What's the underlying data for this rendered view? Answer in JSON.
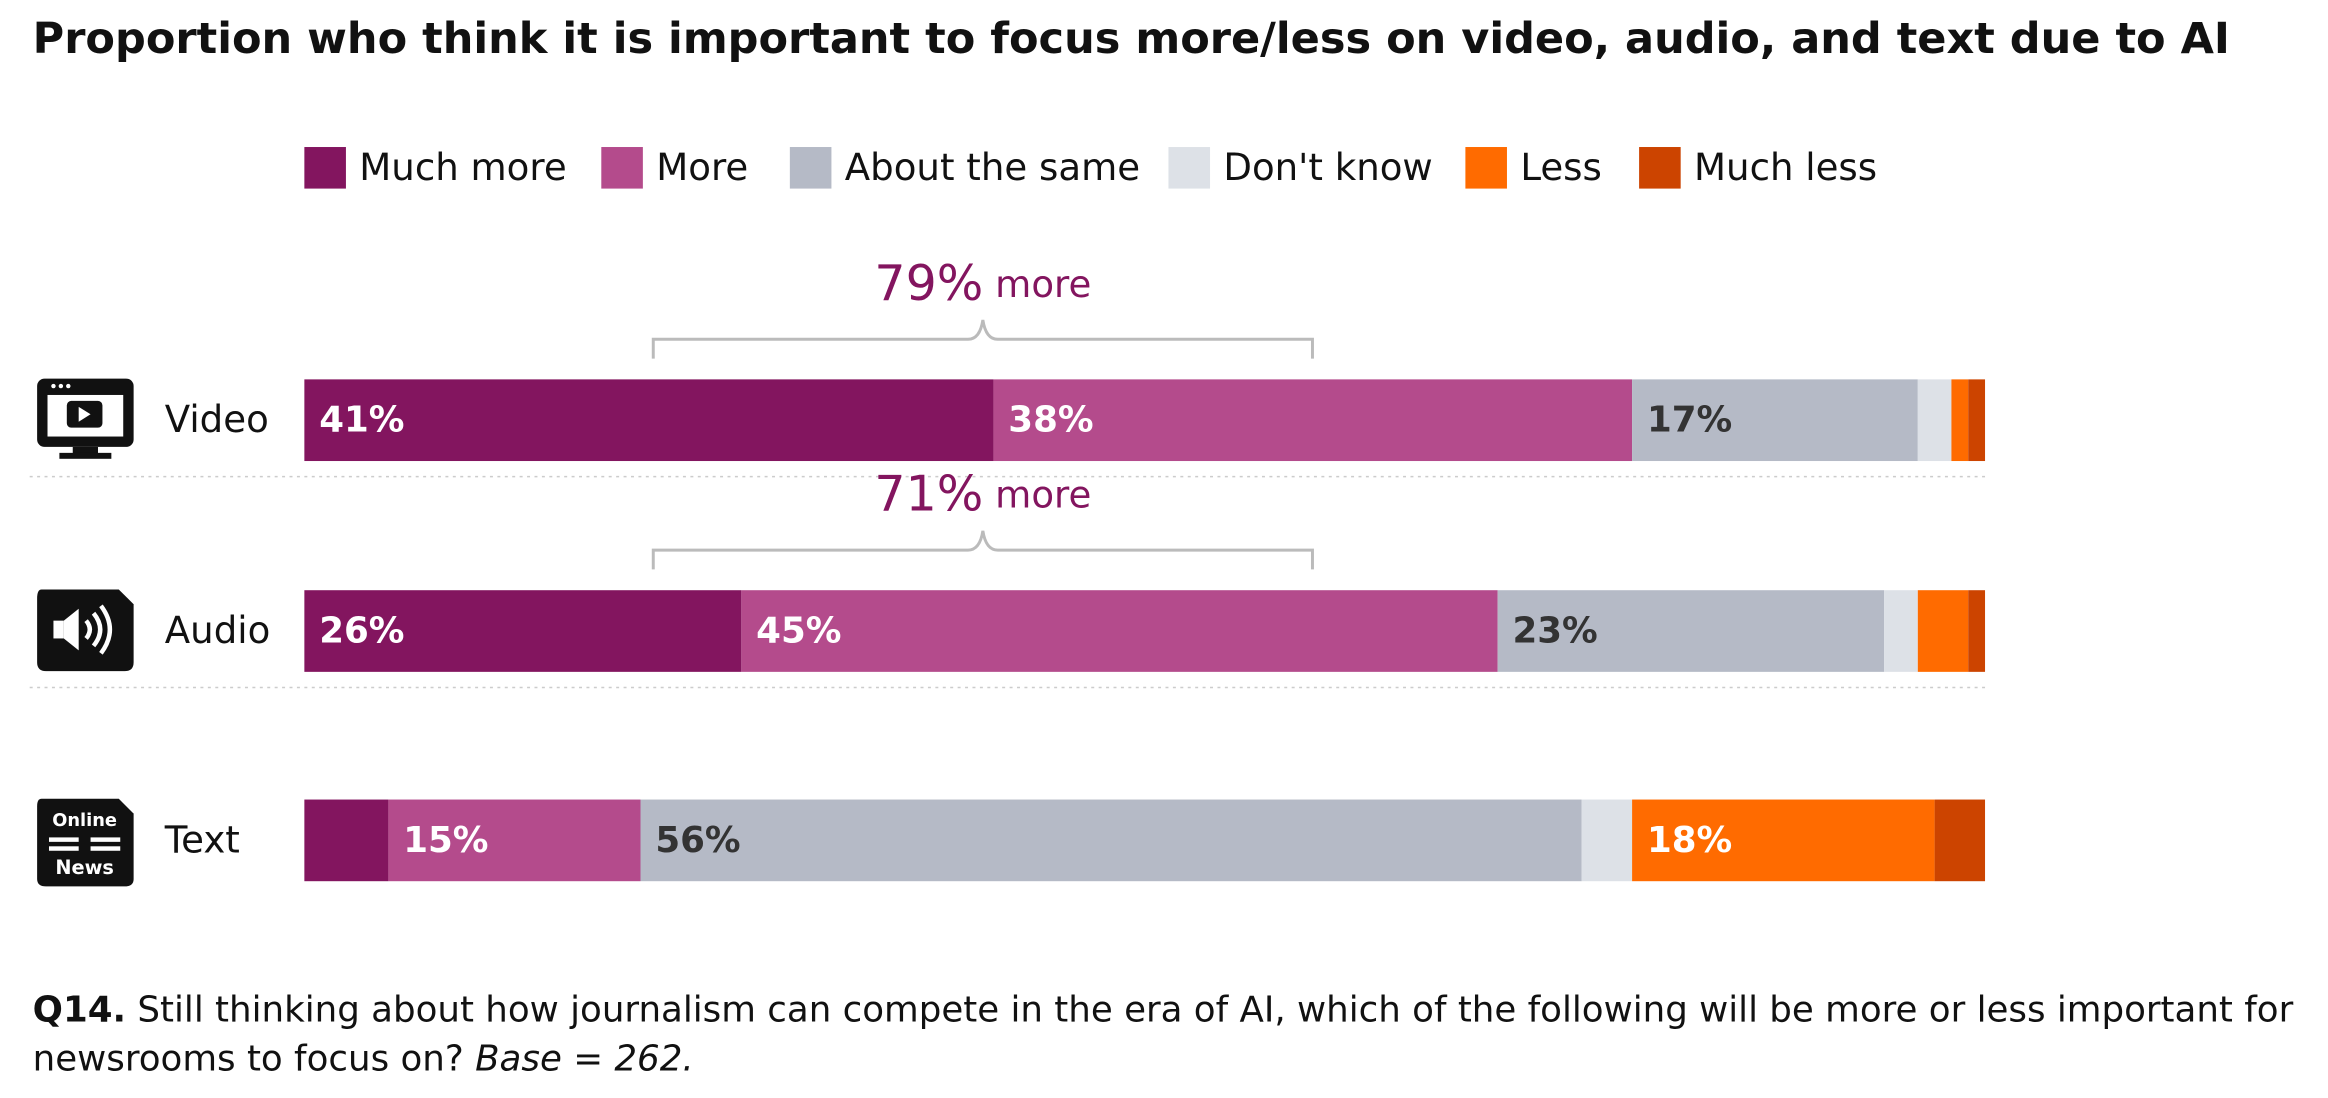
{
  "chart_data": {
    "type": "stacked-bar-horizontal",
    "title": "Proportion who think it is important to focus more/less on video, audio, and text due to AI",
    "categories": [
      "Video",
      "Audio",
      "Text"
    ],
    "xlim": [
      0,
      100
    ],
    "legend": "top",
    "series": [
      {
        "name": "Much more",
        "color": "#83155f",
        "values": [
          41,
          26,
          5
        ],
        "value_labels": [
          "41%",
          "26%",
          null
        ]
      },
      {
        "name": "More",
        "color": "#b44b8c",
        "values": [
          38,
          45,
          15
        ],
        "value_labels": [
          "38%",
          "45%",
          "15%"
        ]
      },
      {
        "name": "About the same",
        "color": "#b5bac6",
        "values": [
          17,
          23,
          56
        ],
        "value_labels": [
          "17%",
          "23%",
          "56%"
        ]
      },
      {
        "name": "Don't know",
        "color": "#dde1e7",
        "values": [
          2,
          2,
          3
        ],
        "value_labels": [
          null,
          null,
          null
        ]
      },
      {
        "name": "Less",
        "color": "#ff6b00",
        "values": [
          1,
          3,
          18
        ],
        "value_labels": [
          null,
          null,
          "18%"
        ]
      },
      {
        "name": "Much less",
        "color": "#cc4400",
        "values": [
          1,
          1,
          3
        ],
        "value_labels": [
          null,
          null,
          null
        ]
      }
    ],
    "annotations": [
      {
        "value": 79,
        "label": "79%",
        "text": "more"
      },
      {
        "value": 71,
        "label": "71%",
        "text": "more"
      }
    ],
    "footnote": {
      "label": "Q14.",
      "text": "Still thinking about how journalism can compete in the era of AI, which of the following will be more or less important for newsrooms to focus on?",
      "base": "Base = 262."
    }
  }
}
